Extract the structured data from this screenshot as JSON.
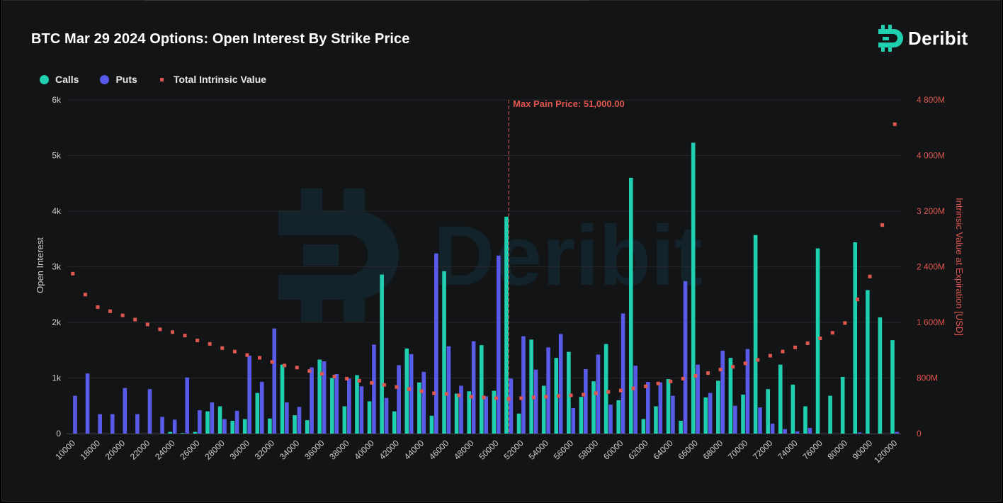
{
  "colors": {
    "calls": "#1fcfb0",
    "puts": "#5a5ae8",
    "intrinsic": "#e0574f",
    "brand": "#1fcfb0",
    "background": "#131416"
  },
  "header": {
    "title": "BTC Mar 29 2024 Options: Open Interest By Strike Price",
    "brand": "Deribit"
  },
  "legend": {
    "calls": "Calls",
    "puts": "Puts",
    "intrinsic": "Total Intrinsic Value"
  },
  "chart_data": {
    "type": "bar",
    "title": "BTC Mar 29 2024 Options: Open Interest By Strike Price",
    "ylabel": "Open Interest",
    "y2label": "Intrinsic Value at Expiration [USD]",
    "ylim": [
      0,
      6000
    ],
    "y2lim": [
      0,
      4800000000
    ],
    "yticks": [
      "0",
      "1k",
      "2k",
      "3k",
      "4k",
      "5k",
      "6k"
    ],
    "y2ticks": [
      "0",
      "800M",
      "1 600M",
      "2 400M",
      "3 200M",
      "4 000M",
      "4 800M"
    ],
    "grid": true,
    "legend_position": "top-left",
    "annotation": {
      "label": "Max Pain Price: 51,000.00",
      "x": "51000"
    },
    "categories": [
      "10000",
      "15000",
      "18000",
      "19000",
      "20000",
      "21000",
      "22000",
      "23000",
      "24000",
      "25000",
      "26000",
      "27000",
      "28000",
      "29000",
      "30000",
      "31000",
      "32000",
      "33000",
      "34000",
      "35000",
      "36000",
      "37000",
      "38000",
      "39000",
      "40000",
      "41000",
      "42000",
      "43000",
      "44000",
      "45000",
      "46000",
      "47000",
      "48000",
      "49000",
      "50000",
      "51000",
      "52000",
      "53000",
      "54000",
      "55000",
      "56000",
      "57000",
      "58000",
      "59000",
      "60000",
      "61000",
      "62000",
      "63000",
      "64000",
      "65000",
      "66000",
      "67000",
      "68000",
      "69000",
      "70000",
      "71000",
      "72000",
      "73000",
      "74000",
      "75000",
      "76000",
      "78000",
      "80000",
      "85000",
      "90000",
      "100000",
      "120000"
    ],
    "xtick_labels": [
      "10000",
      "18000",
      "20000",
      "22000",
      "24000",
      "26000",
      "28000",
      "30000",
      "32000",
      "34000",
      "36000",
      "38000",
      "40000",
      "42000",
      "44000",
      "46000",
      "48000",
      "50000",
      "52000",
      "54000",
      "56000",
      "58000",
      "60000",
      "62000",
      "64000",
      "66000",
      "68000",
      "70000",
      "72000",
      "74000",
      "76000",
      "80000",
      "90000",
      "120000"
    ],
    "series": [
      {
        "name": "Calls",
        "kind": "bar",
        "values": [
          0,
          0,
          0,
          0,
          0,
          0,
          0,
          0,
          30,
          10,
          30,
          400,
          490,
          230,
          260,
          730,
          270,
          1240,
          330,
          240,
          1330,
          1000,
          490,
          1050,
          580,
          2860,
          400,
          1530,
          920,
          320,
          2920,
          720,
          760,
          1590,
          770,
          3900,
          360,
          1690,
          860,
          1360,
          1470,
          660,
          940,
          1610,
          600,
          4600,
          260,
          490,
          980,
          230,
          5230,
          650,
          950,
          1360,
          700,
          3570,
          800,
          1240,
          880,
          490,
          3330,
          680,
          1020,
          3440,
          2580,
          2090,
          1680
        ]
      },
      {
        "name": "Puts",
        "kind": "bar",
        "values": [
          680,
          1080,
          350,
          350,
          820,
          350,
          800,
          300,
          250,
          1010,
          420,
          560,
          260,
          410,
          1400,
          930,
          1890,
          560,
          480,
          1190,
          1300,
          1070,
          990,
          850,
          1600,
          640,
          1230,
          1430,
          1110,
          3240,
          1570,
          860,
          1660,
          670,
          3200,
          990,
          1750,
          1150,
          1550,
          1790,
          460,
          1160,
          1420,
          520,
          2160,
          1220,
          930,
          920,
          680,
          2740,
          1240,
          730,
          1490,
          500,
          1520,
          470,
          180,
          80,
          40,
          100,
          0,
          0,
          0,
          20,
          0,
          0,
          30
        ]
      },
      {
        "name": "Total Intrinsic Value",
        "kind": "scatter",
        "values": [
          2300000000,
          2000000000,
          1820000000,
          1760000000,
          1700000000,
          1640000000,
          1570000000,
          1500000000,
          1460000000,
          1410000000,
          1340000000,
          1290000000,
          1230000000,
          1180000000,
          1130000000,
          1090000000,
          1030000000,
          980000000,
          950000000,
          900000000,
          860000000,
          820000000,
          790000000,
          760000000,
          730000000,
          700000000,
          670000000,
          640000000,
          610000000,
          580000000,
          570000000,
          550000000,
          530000000,
          520000000,
          510000000,
          500000000,
          510000000,
          520000000,
          530000000,
          540000000,
          550000000,
          560000000,
          580000000,
          600000000,
          620000000,
          650000000,
          680000000,
          720000000,
          750000000,
          790000000,
          830000000,
          870000000,
          920000000,
          960000000,
          1010000000,
          1060000000,
          1120000000,
          1180000000,
          1240000000,
          1300000000,
          1370000000,
          1450000000,
          1590000000,
          1930000000,
          2260000000,
          3000000000,
          4450000000
        ]
      }
    ]
  }
}
